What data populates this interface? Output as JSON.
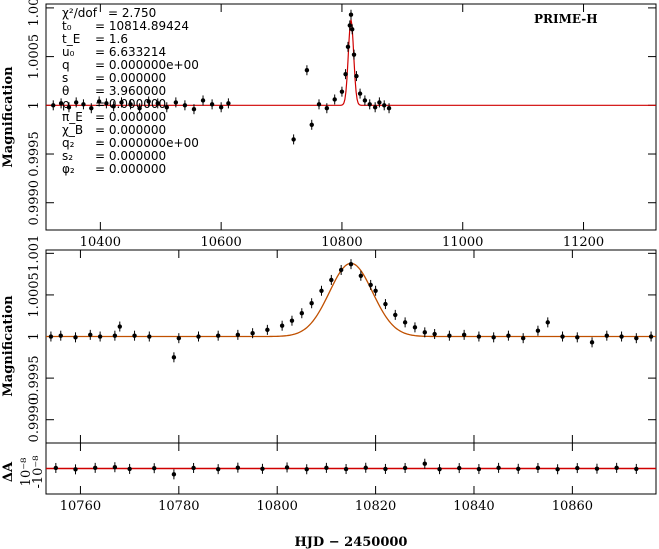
{
  "chart_data": [
    {
      "type": "scatter",
      "panel": "full-light-curve",
      "observatory": "PRIME-H",
      "ylabel": "Magnification",
      "xlim": [
        10310,
        11320
      ],
      "ylim": [
        0.99872,
        1.00104
      ],
      "x_ticks": [
        "10400",
        "10600",
        "10800",
        "11000",
        "11200"
      ],
      "x_tick_values": [
        10400,
        10600,
        10800,
        11000,
        11200
      ],
      "y_ticks": [
        "0.9990",
        "0.9995",
        "1",
        "1.0005",
        "1.001"
      ],
      "y_tick_values": [
        0.999,
        0.9995,
        1.0,
        1.0005,
        1.001
      ],
      "model": {
        "t0": 10814.89424,
        "tE": 1.6,
        "u0": 6.633214,
        "baseline": 1.0
      },
      "params": [
        {
          "name": "χ²/dof",
          "value": "= 2.750"
        },
        {
          "name": "t₀",
          "value": "= 10814.89424"
        },
        {
          "name": "t_E",
          "value": "= 1.6"
        },
        {
          "name": "u₀",
          "value": "= 6.633214"
        },
        {
          "name": "q",
          "value": "= 0.000000e+00"
        },
        {
          "name": "s",
          "value": "= 0.000000"
        },
        {
          "name": "θ",
          "value": "= 3.960000"
        },
        {
          "name": "ρ",
          "value": "= 0.000000"
        },
        {
          "name": "π_E",
          "value": "= 0.000000"
        },
        {
          "name": "χ_B",
          "value": "= 0.000000"
        },
        {
          "name": "q₂",
          "value": "= 0.000000e+00"
        },
        {
          "name": "s₂",
          "value": "= 0.000000"
        },
        {
          "name": "φ₂",
          "value": "= 0.000000"
        }
      ],
      "points": [
        {
          "x": 10322,
          "y": 1.0
        },
        {
          "x": 10335,
          "y": 1.00002
        },
        {
          "x": 10348,
          "y": 0.99998
        },
        {
          "x": 10360,
          "y": 1.00003
        },
        {
          "x": 10372,
          "y": 1.00001
        },
        {
          "x": 10385,
          "y": 0.99997
        },
        {
          "x": 10398,
          "y": 1.00004
        },
        {
          "x": 10410,
          "y": 1.00002
        },
        {
          "x": 10422,
          "y": 0.99999
        },
        {
          "x": 10435,
          "y": 1.00003
        },
        {
          "x": 10450,
          "y": 1.00001
        },
        {
          "x": 10465,
          "y": 0.99997
        },
        {
          "x": 10480,
          "y": 1.00004
        },
        {
          "x": 10495,
          "y": 1.00002
        },
        {
          "x": 10510,
          "y": 0.99998
        },
        {
          "x": 10525,
          "y": 1.00003
        },
        {
          "x": 10540,
          "y": 1.0
        },
        {
          "x": 10555,
          "y": 0.99996
        },
        {
          "x": 10570,
          "y": 1.00005
        },
        {
          "x": 10585,
          "y": 1.00001
        },
        {
          "x": 10600,
          "y": 0.99998
        },
        {
          "x": 10612,
          "y": 1.00002
        },
        {
          "x": 10720,
          "y": 0.99965
        },
        {
          "x": 10742,
          "y": 1.00036
        },
        {
          "x": 10750,
          "y": 0.9998
        },
        {
          "x": 10762,
          "y": 1.00001
        },
        {
          "x": 10775,
          "y": 0.99997
        },
        {
          "x": 10788,
          "y": 1.00006
        },
        {
          "x": 10800,
          "y": 1.00014
        },
        {
          "x": 10806,
          "y": 1.00032
        },
        {
          "x": 10810,
          "y": 1.0006
        },
        {
          "x": 10813,
          "y": 1.00082
        },
        {
          "x": 10815,
          "y": 1.00093
        },
        {
          "x": 10817,
          "y": 1.00078
        },
        {
          "x": 10820,
          "y": 1.00052
        },
        {
          "x": 10824,
          "y": 1.0003
        },
        {
          "x": 10830,
          "y": 1.00012
        },
        {
          "x": 10838,
          "y": 1.00005
        },
        {
          "x": 10846,
          "y": 1.00001
        },
        {
          "x": 10855,
          "y": 0.99998
        },
        {
          "x": 10862,
          "y": 1.00003
        },
        {
          "x": 10870,
          "y": 1.0
        },
        {
          "x": 10878,
          "y": 0.99997
        }
      ]
    },
    {
      "type": "scatter",
      "panel": "zoom-light-curve",
      "ylabel": "Magnification",
      "xlim": [
        10753,
        10877
      ],
      "ylim": [
        0.99872,
        1.00104
      ],
      "y_ticks": [
        "0.9990",
        "0.9995",
        "1",
        "1.0005",
        "1.001"
      ],
      "y_tick_values": [
        0.999,
        0.9995,
        1.0,
        1.0005,
        1.001
      ],
      "points": [
        {
          "x": 10754,
          "y": 1.0
        },
        {
          "x": 10756,
          "y": 1.00001
        },
        {
          "x": 10759,
          "y": 0.99999
        },
        {
          "x": 10762,
          "y": 1.00002
        },
        {
          "x": 10764,
          "y": 1.0
        },
        {
          "x": 10767,
          "y": 1.00001
        },
        {
          "x": 10768,
          "y": 1.00012
        },
        {
          "x": 10771,
          "y": 1.00001
        },
        {
          "x": 10774,
          "y": 1.0
        },
        {
          "x": 10779,
          "y": 0.99975
        },
        {
          "x": 10780,
          "y": 0.99998
        },
        {
          "x": 10784,
          "y": 1.0
        },
        {
          "x": 10788,
          "y": 1.00001
        },
        {
          "x": 10792,
          "y": 1.00002
        },
        {
          "x": 10795,
          "y": 1.00004
        },
        {
          "x": 10798,
          "y": 1.00008
        },
        {
          "x": 10801,
          "y": 1.00013
        },
        {
          "x": 10803,
          "y": 1.00019
        },
        {
          "x": 10805,
          "y": 1.00028
        },
        {
          "x": 10807,
          "y": 1.0004
        },
        {
          "x": 10809,
          "y": 1.00055
        },
        {
          "x": 10811,
          "y": 1.00068
        },
        {
          "x": 10813,
          "y": 1.0008
        },
        {
          "x": 10815,
          "y": 1.00087
        },
        {
          "x": 10817,
          "y": 1.00073
        },
        {
          "x": 10819,
          "y": 1.00062
        },
        {
          "x": 10820,
          "y": 1.00055
        },
        {
          "x": 10822,
          "y": 1.00039
        },
        {
          "x": 10824,
          "y": 1.00026
        },
        {
          "x": 10826,
          "y": 1.00017
        },
        {
          "x": 10828,
          "y": 1.00011
        },
        {
          "x": 10830,
          "y": 1.00005
        },
        {
          "x": 10832,
          "y": 1.00003
        },
        {
          "x": 10835,
          "y": 1.00001
        },
        {
          "x": 10838,
          "y": 1.00002
        },
        {
          "x": 10841,
          "y": 1.0
        },
        {
          "x": 10844,
          "y": 0.99999
        },
        {
          "x": 10847,
          "y": 1.00001
        },
        {
          "x": 10850,
          "y": 0.99998
        },
        {
          "x": 10853,
          "y": 1.00007
        },
        {
          "x": 10855,
          "y": 1.00017
        },
        {
          "x": 10858,
          "y": 1.0
        },
        {
          "x": 10861,
          "y": 0.99999
        },
        {
          "x": 10864,
          "y": 0.99993
        },
        {
          "x": 10867,
          "y": 1.00001
        },
        {
          "x": 10870,
          "y": 1.0
        },
        {
          "x": 10873,
          "y": 0.99998
        },
        {
          "x": 10876,
          "y": 1.0
        }
      ]
    },
    {
      "type": "scatter",
      "panel": "residuals",
      "ylabel": "ΔA",
      "ytick_labels": [
        "10⁻⁸",
        "-10⁻⁸"
      ],
      "xlabel": "HJD − 2450000",
      "xlim": [
        10753,
        10877
      ],
      "x_ticks": [
        "10760",
        "10780",
        "10800",
        "10820",
        "10840",
        "10860"
      ],
      "x_tick_values": [
        10760,
        10780,
        10800,
        10820,
        10840,
        10860
      ],
      "ylim": [
        -2.4,
        2.4
      ],
      "points": [
        {
          "x": 10755,
          "y": 0.05
        },
        {
          "x": 10759,
          "y": -0.08
        },
        {
          "x": 10763,
          "y": 0.06
        },
        {
          "x": 10767,
          "y": 0.12
        },
        {
          "x": 10770,
          "y": -0.04
        },
        {
          "x": 10775,
          "y": 0.03
        },
        {
          "x": 10779,
          "y": -0.55
        },
        {
          "x": 10783,
          "y": 0.05
        },
        {
          "x": 10788,
          "y": -0.06
        },
        {
          "x": 10792,
          "y": 0.08
        },
        {
          "x": 10797,
          "y": -0.03
        },
        {
          "x": 10802,
          "y": 0.1
        },
        {
          "x": 10806,
          "y": -0.07
        },
        {
          "x": 10810,
          "y": 0.06
        },
        {
          "x": 10814,
          "y": -0.05
        },
        {
          "x": 10818,
          "y": 0.07
        },
        {
          "x": 10822,
          "y": -0.04
        },
        {
          "x": 10826,
          "y": 0.05
        },
        {
          "x": 10830,
          "y": 0.45
        },
        {
          "x": 10833,
          "y": -0.06
        },
        {
          "x": 10837,
          "y": 0.04
        },
        {
          "x": 10841,
          "y": -0.05
        },
        {
          "x": 10845,
          "y": 0.06
        },
        {
          "x": 10849,
          "y": -0.03
        },
        {
          "x": 10853,
          "y": 0.05
        },
        {
          "x": 10857,
          "y": -0.07
        },
        {
          "x": 10861,
          "y": 0.04
        },
        {
          "x": 10865,
          "y": -0.02
        },
        {
          "x": 10869,
          "y": 0.06
        },
        {
          "x": 10873,
          "y": -0.04
        }
      ]
    }
  ]
}
